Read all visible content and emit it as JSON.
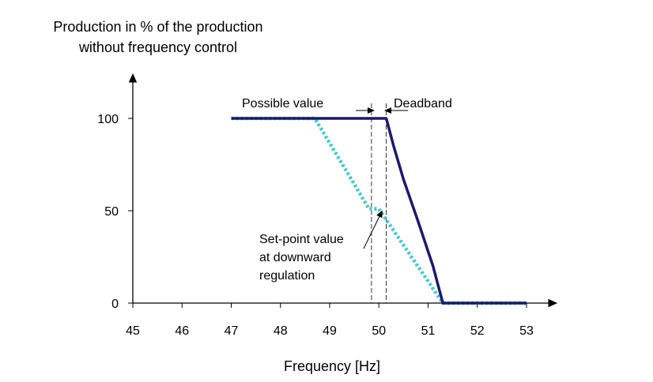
{
  "chart_data": {
    "type": "line",
    "ylabel_lines": [
      "Production in % of the production",
      "without frequency control"
    ],
    "xlabel": "Frequency [Hz]",
    "xlim": [
      45,
      53
    ],
    "ylim": [
      0,
      100
    ],
    "x_ticks": [
      "45",
      "46",
      "47",
      "48",
      "49",
      "50",
      "51",
      "52",
      "53"
    ],
    "y_ticks": [
      "0",
      "50",
      "100"
    ],
    "series": [
      {
        "style": "solid",
        "color": "#1a1a6e",
        "points": [
          [
            47,
            100
          ],
          [
            50.15,
            100
          ],
          [
            50.3,
            85
          ],
          [
            50.5,
            67
          ],
          [
            50.8,
            44
          ],
          [
            51.1,
            20
          ],
          [
            51.3,
            0
          ],
          [
            53,
            0
          ]
        ]
      },
      {
        "style": "dotted",
        "color": "#40c8c8",
        "points": [
          [
            47,
            100
          ],
          [
            48.7,
            100
          ],
          [
            49.8,
            51
          ],
          [
            50.0,
            51
          ],
          [
            51.3,
            0
          ],
          [
            53,
            0
          ]
        ]
      }
    ],
    "guides": [
      {
        "style": "dashed",
        "x": 49.85
      },
      {
        "style": "dashed",
        "x": 50.15
      }
    ],
    "annotations": {
      "possible_value": "Possible value",
      "deadband": "Deadband",
      "setpoint_line1": "Set-point value",
      "setpoint_line2": "at downward",
      "setpoint_line3": "regulation"
    }
  }
}
